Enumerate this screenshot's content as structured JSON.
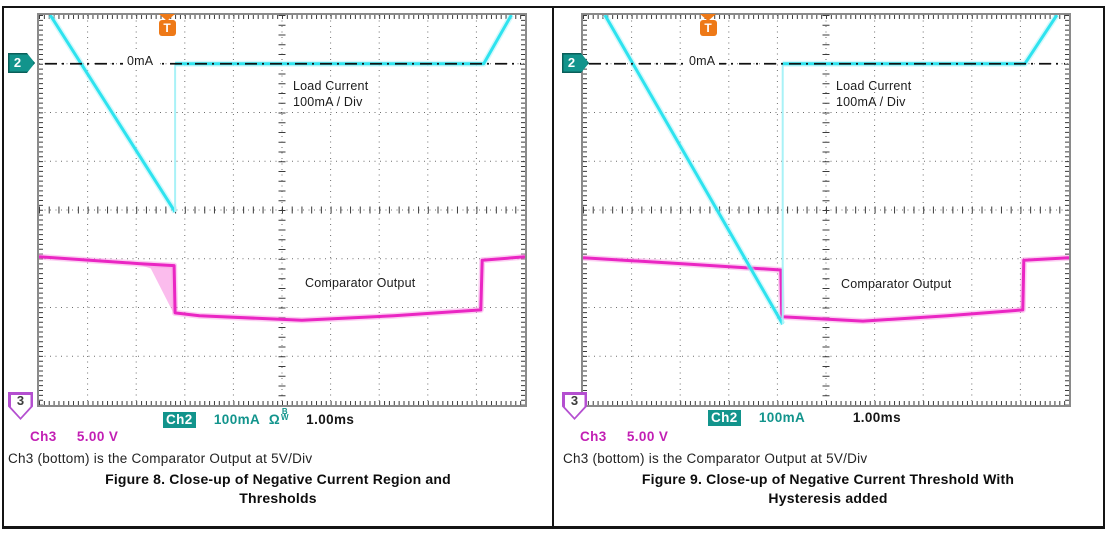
{
  "colors": {
    "trace_cyan": "#2ee3ef",
    "trace_cyan_halo": "#a9f2f7",
    "trace_magenta": "#ea26c3",
    "trace_magenta_halo": "#f9a0e6",
    "readout_teal": "#12948c",
    "ch3_magenta": "#c21fb4",
    "trigger_orange": "#ee7917",
    "marker3_violet": "#b44fd0"
  },
  "panels": [
    {
      "scope": {
        "ch2_tag": "2",
        "ch3_tag": "3",
        "trigger_tag": "T",
        "zero_label": "0mA",
        "load_label_1": "Load Current",
        "load_label_2": "100mA / Div",
        "comparator_label": "Comparator Output",
        "ch2_label": "Ch2",
        "ch2_value": "100mA",
        "ch2_coupling": "Ω",
        "ch2_bw_top": "B",
        "ch2_bw_bottom": "W",
        "time_value": "1.00ms",
        "ch3_label": "Ch3",
        "ch3_value": "5.00 V"
      },
      "note": "Ch3 (bottom) is the Comparator Output at 5V/Div",
      "title1": "Figure 8. Close-up of Negative Current Region and",
      "title2": "Thresholds"
    },
    {
      "scope": {
        "ch2_tag": "2",
        "ch3_tag": "3",
        "trigger_tag": "T",
        "zero_label": "0mA",
        "load_label_1": "Load Current",
        "load_label_2": "100mA / Div",
        "comparator_label": "Comparator Output",
        "ch2_label": "Ch2",
        "ch2_value": "100mA",
        "time_value": "1.00ms",
        "ch3_label": "Ch3",
        "ch3_value": "5.00 V"
      },
      "note": "Ch3 (bottom) is the Comparator Output at 5V/Div",
      "title1": "Figure 9. Close-up of Negative Current Threshold With",
      "title2": "Hysteresis added"
    }
  ],
  "chart_data": [
    {
      "type": "line",
      "figure": "Figure 8",
      "title": "Close-up of Negative Current Region and Thresholds",
      "x_axis": {
        "units": "ms",
        "per_division": "1.00ms",
        "divisions": 10,
        "range": [
          0,
          10
        ]
      },
      "y_axis": {
        "divisions": 8,
        "ch2_scale": "100mA/div, 0mA line 1 div below top",
        "ch3_scale": "5V/div, Ch3 ground marker at bottom graticule"
      },
      "grid": true,
      "annotations": [
        "0mA",
        "Load Current 100mA / Div",
        "Comparator Output"
      ],
      "series": [
        {
          "name": "Load Current (Ch2)",
          "units": "mA",
          "map": "load",
          "color": "#2ee3ef",
          "halo": "#a9f2f7",
          "segments": [
            {
              "style": "core",
              "points": [
                [
                  0.23,
                  100
                ],
                [
                  2.8,
                  -304
                ]
              ]
            },
            {
              "style": "ghost",
              "points": [
                [
                  2.8,
                  -304
                ],
                [
                  2.8,
                  0
                ]
              ]
            },
            {
              "style": "core",
              "points": [
                [
                  2.8,
                  0
                ],
                [
                  9.15,
                  0
                ],
                [
                  9.72,
                  100
                ]
              ]
            }
          ]
        },
        {
          "name": "Comparator Output (Ch3)",
          "units": "div_above_bottom",
          "volts_per_div": 5,
          "map": "comp",
          "color": "#ea26c3",
          "halo": "#f9a0e6",
          "segments": [
            {
              "style": "core",
              "points": [
                [
                  0,
                  3.04
                ],
                [
                  2.05,
                  2.9
                ],
                [
                  2.78,
                  2.86
                ],
                [
                  2.8,
                  1.89
                ],
                [
                  3.3,
                  1.83
                ],
                [
                  5.41,
                  1.74
                ],
                [
                  7.3,
                  1.83
                ],
                [
                  9.09,
                  1.95
                ],
                [
                  9.12,
                  2.97
                ],
                [
                  10,
                  3.04
                ]
              ]
            }
          ]
        }
      ],
      "noise_region": {
        "map": "comp",
        "color": "#f9a0e6",
        "points": [
          [
            2.06,
            2.88
          ],
          [
            2.78,
            2.86
          ],
          [
            2.78,
            1.86
          ],
          [
            2.3,
            2.8
          ]
        ]
      }
    },
    {
      "type": "line",
      "figure": "Figure 9",
      "title": "Close-up of Negative Current Threshold With Hysteresis added",
      "x_axis": {
        "units": "ms",
        "per_division": "1.00ms",
        "divisions": 10,
        "range": [
          0,
          10
        ]
      },
      "y_axis": {
        "divisions": 8,
        "ch2_scale": "100mA/div, 0mA line 1 div below top",
        "ch3_scale": "5V/div, Ch3 ground marker at bottom graticule"
      },
      "grid": true,
      "annotations": [
        "0mA",
        "Load Current 100mA / Div",
        "Comparator Output"
      ],
      "series": [
        {
          "name": "Load Current (Ch2)",
          "units": "mA",
          "map": "load",
          "color": "#2ee3ef",
          "halo": "#a9f2f7",
          "segments": [
            {
              "style": "core",
              "points": [
                [
                  0.45,
                  100
                ],
                [
                  4.11,
                  -534
                ]
              ]
            },
            {
              "style": "ghost",
              "points": [
                [
                  4.11,
                  -534
                ],
                [
                  4.11,
                  0
                ]
              ]
            },
            {
              "style": "core",
              "points": [
                [
                  4.11,
                  0
                ],
                [
                  9.09,
                  0
                ],
                [
                  9.75,
                  100
                ]
              ]
            }
          ]
        },
        {
          "name": "Comparator Output (Ch3)",
          "units": "div_above_bottom",
          "volts_per_div": 5,
          "map": "comp",
          "color": "#ea26c3",
          "halo": "#f9a0e6",
          "segments": [
            {
              "style": "core",
              "points": [
                [
                  0,
                  3.02
                ],
                [
                  2.0,
                  2.9
                ],
                [
                  4.07,
                  2.77
                ],
                [
                  4.09,
                  1.81
                ],
                [
                  5.76,
                  1.72
                ],
                [
                  7.5,
                  1.83
                ],
                [
                  9.05,
                  1.95
                ],
                [
                  9.07,
                  2.97
                ],
                [
                  10,
                  3.02
                ]
              ]
            }
          ]
        }
      ],
      "noise_region": null
    }
  ]
}
